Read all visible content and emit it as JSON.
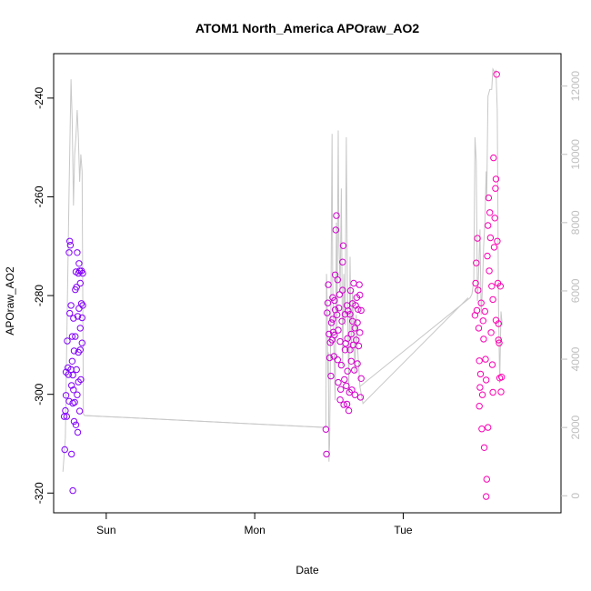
{
  "chart_data": {
    "type": "scatter",
    "title": "ATOM1 North_America APOraw_AO2",
    "xlabel": "Date",
    "ylabel": "APOraw_AO2",
    "x_ticks": [
      {
        "label": "Sun",
        "x": 24
      },
      {
        "label": "Mon",
        "x": 48
      },
      {
        "label": "Tue",
        "x": 72
      }
    ],
    "xlim": [
      15.5,
      97.5
    ],
    "ylim": [
      -324,
      -231
    ],
    "y_ticks": [
      -320,
      -300,
      -280,
      -260,
      -240
    ],
    "y2lim": [
      -500,
      12950
    ],
    "y2_ticks": [
      0,
      2000,
      4000,
      6000,
      8000,
      10000,
      12000
    ],
    "grid": false,
    "series": [
      {
        "color_start": "#7f00ff",
        "color_end": "#ff00b0",
        "points": [
          [
            17.2,
            -304.5
          ],
          [
            17.3,
            -311.2
          ],
          [
            17.4,
            -303.3
          ],
          [
            17.5,
            -300.2
          ],
          [
            17.5,
            -295.5
          ],
          [
            17.6,
            -304.5
          ],
          [
            17.7,
            -289.2
          ],
          [
            17.8,
            -294.6
          ],
          [
            17.9,
            -296.0
          ],
          [
            18.0,
            -301.4
          ],
          [
            18.0,
            -271.3
          ],
          [
            18.1,
            -269.0
          ],
          [
            18.2,
            -269.8
          ],
          [
            18.3,
            -282.0
          ],
          [
            18.3,
            -295.0
          ],
          [
            18.4,
            -298.2
          ],
          [
            18.4,
            -312.1
          ],
          [
            18.5,
            -288.3
          ],
          [
            18.5,
            -293.3
          ],
          [
            18.6,
            -301.8
          ],
          [
            18.6,
            -319.5
          ],
          [
            18.7,
            -299.1
          ],
          [
            18.7,
            -284.6
          ],
          [
            18.8,
            -305.5
          ],
          [
            18.8,
            -291.2
          ],
          [
            18.9,
            -301.6
          ],
          [
            19.0,
            -288.3
          ],
          [
            19.0,
            -278.8
          ],
          [
            19.1,
            -275.2
          ],
          [
            19.1,
            -306.2
          ],
          [
            19.2,
            -295.0
          ],
          [
            19.2,
            -278.3
          ],
          [
            19.3,
            -271.3
          ],
          [
            19.3,
            -300.1
          ],
          [
            19.4,
            -284.2
          ],
          [
            19.4,
            -307.7
          ],
          [
            19.5,
            -275.5
          ],
          [
            19.5,
            -291.5
          ],
          [
            19.6,
            -273.5
          ],
          [
            19.6,
            -282.6
          ],
          [
            19.7,
            -275.0
          ],
          [
            19.7,
            -303.4
          ],
          [
            19.8,
            -286.6
          ],
          [
            19.8,
            -277.5
          ],
          [
            19.9,
            -297.0
          ],
          [
            20.0,
            -281.6
          ],
          [
            20.0,
            -275.0
          ],
          [
            20.1,
            -289.6
          ],
          [
            20.1,
            -284.5
          ],
          [
            20.2,
            -275.5
          ],
          [
            20.2,
            -282.0
          ],
          [
            19.5,
            -297.5
          ],
          [
            19.8,
            -291.0
          ],
          [
            18.1,
            -283.6
          ],
          [
            18.6,
            -296.1
          ],
          [
            59.5,
            -307.1
          ],
          [
            59.6,
            -312.1
          ],
          [
            59.7,
            -283.5
          ],
          [
            59.8,
            -281.5
          ],
          [
            59.9,
            -277.8
          ],
          [
            60.0,
            -287.8
          ],
          [
            60.1,
            -292.6
          ],
          [
            60.2,
            -289.5
          ],
          [
            60.3,
            -296.3
          ],
          [
            60.4,
            -285.5
          ],
          [
            60.5,
            -289.0
          ],
          [
            60.6,
            -284.8
          ],
          [
            60.6,
            -280.4
          ],
          [
            60.7,
            -287.4
          ],
          [
            60.8,
            -292.3
          ],
          [
            60.9,
            -288.0
          ],
          [
            61.0,
            -282.9
          ],
          [
            61.0,
            -275.8
          ],
          [
            61.1,
            -266.7
          ],
          [
            61.2,
            -263.8
          ],
          [
            61.3,
            -283.9
          ],
          [
            61.4,
            -276.8
          ],
          [
            61.4,
            -293.0
          ],
          [
            61.5,
            -287.0
          ],
          [
            61.6,
            -282.5
          ],
          [
            61.7,
            -279.8
          ],
          [
            61.8,
            -289.3
          ],
          [
            61.8,
            -301.1
          ],
          [
            61.9,
            -299.0
          ],
          [
            62.0,
            -294.1
          ],
          [
            62.1,
            -285.2
          ],
          [
            62.2,
            -273.2
          ],
          [
            62.2,
            -278.9
          ],
          [
            62.3,
            -269.9
          ],
          [
            62.4,
            -302.1
          ],
          [
            62.5,
            -297.0
          ],
          [
            62.6,
            -291.0
          ],
          [
            62.6,
            -283.8
          ],
          [
            62.7,
            -289.7
          ],
          [
            62.8,
            -298.3
          ],
          [
            62.9,
            -282.0
          ],
          [
            63.0,
            -288.7
          ],
          [
            63.0,
            -295.3
          ],
          [
            63.1,
            -283.1
          ],
          [
            63.2,
            -303.3
          ],
          [
            63.3,
            -299.6
          ],
          [
            63.4,
            -291.0
          ],
          [
            63.4,
            -283.8
          ],
          [
            63.5,
            -279.0
          ],
          [
            63.6,
            -287.8
          ],
          [
            63.7,
            -299.1
          ],
          [
            63.8,
            -285.2
          ],
          [
            63.8,
            -281.6
          ],
          [
            63.9,
            -290.0
          ],
          [
            64.0,
            -277.5
          ],
          [
            64.1,
            -295.1
          ],
          [
            64.2,
            -286.6
          ],
          [
            64.2,
            -300.1
          ],
          [
            64.3,
            -282.0
          ],
          [
            64.4,
            -289.0
          ],
          [
            64.5,
            -280.4
          ],
          [
            64.6,
            -285.5
          ],
          [
            64.6,
            -293.8
          ],
          [
            64.7,
            -282.8
          ],
          [
            64.8,
            -290.2
          ],
          [
            64.9,
            -277.8
          ],
          [
            65.0,
            -287.5
          ],
          [
            65.0,
            -279.9
          ],
          [
            65.1,
            -300.6
          ],
          [
            65.2,
            -296.8
          ],
          [
            65.2,
            -283.0
          ],
          [
            61.5,
            -297.6
          ],
          [
            62.9,
            -302.0
          ],
          [
            63.6,
            -293.3
          ],
          [
            60.9,
            -281.0
          ],
          [
            84.0,
            -268.4
          ],
          [
            84.1,
            -278.9
          ],
          [
            84.2,
            -286.6
          ],
          [
            84.3,
            -293.2
          ],
          [
            84.4,
            -298.6
          ],
          [
            84.5,
            -295.9
          ],
          [
            84.6,
            -281.5
          ],
          [
            84.7,
            -307.0
          ],
          [
            84.8,
            -300.1
          ],
          [
            84.9,
            -285.1
          ],
          [
            85.0,
            -288.8
          ],
          [
            85.1,
            -310.8
          ],
          [
            85.2,
            -283.2
          ],
          [
            85.3,
            -292.9
          ],
          [
            85.4,
            -297.1
          ],
          [
            85.4,
            -320.7
          ],
          [
            85.5,
            -317.2
          ],
          [
            85.6,
            -272.0
          ],
          [
            85.7,
            -265.8
          ],
          [
            85.8,
            -260.2
          ],
          [
            85.9,
            -275.0
          ],
          [
            86.0,
            -263.2
          ],
          [
            86.1,
            -268.3
          ],
          [
            86.2,
            -287.5
          ],
          [
            86.3,
            -278.1
          ],
          [
            86.4,
            -294.0
          ],
          [
            86.5,
            -299.6
          ],
          [
            86.6,
            -252.1
          ],
          [
            86.7,
            -270.2
          ],
          [
            86.8,
            -264.3
          ],
          [
            86.9,
            -258.3
          ],
          [
            87.0,
            -256.4
          ],
          [
            87.1,
            -235.2
          ],
          [
            87.2,
            -269.0
          ],
          [
            87.3,
            -277.5
          ],
          [
            87.4,
            -285.7
          ],
          [
            87.5,
            -289.6
          ],
          [
            87.6,
            -296.7
          ],
          [
            87.7,
            -278.1
          ],
          [
            87.8,
            -299.5
          ],
          [
            87.9,
            -296.5
          ],
          [
            83.6,
            -284.0
          ],
          [
            83.7,
            -277.5
          ],
          [
            83.8,
            -273.4
          ],
          [
            83.9,
            -283.0
          ],
          [
            84.3,
            -302.4
          ],
          [
            85.7,
            -306.7
          ],
          [
            86.5,
            -280.8
          ],
          [
            87.0,
            -285.0
          ],
          [
            87.4,
            -289.0
          ]
        ]
      }
    ],
    "right_axis_line": [
      [
        17.0,
        700
      ],
      [
        17.4,
        1700
      ],
      [
        17.7,
        5500
      ],
      [
        18.0,
        9000
      ],
      [
        18.3,
        12200
      ],
      [
        18.5,
        11000
      ],
      [
        18.7,
        8500
      ],
      [
        18.9,
        10000
      ],
      [
        19.1,
        10500
      ],
      [
        19.3,
        11300
      ],
      [
        19.5,
        10500
      ],
      [
        19.7,
        9200
      ],
      [
        19.9,
        10000
      ],
      [
        20.1,
        9500
      ],
      [
        20.3,
        2400
      ],
      [
        20.5,
        2350
      ],
      [
        59.5,
        2000
      ],
      [
        59.6,
        6500
      ],
      [
        59.7,
        5700
      ],
      [
        59.8,
        3500
      ],
      [
        59.9,
        4200
      ],
      [
        60.0,
        1000
      ],
      [
        60.1,
        1500
      ],
      [
        60.3,
        5500
      ],
      [
        60.5,
        10600
      ],
      [
        60.6,
        6200
      ],
      [
        60.8,
        4300
      ],
      [
        61.0,
        2800
      ],
      [
        61.2,
        8000
      ],
      [
        61.3,
        4900
      ],
      [
        61.4,
        8000
      ],
      [
        61.5,
        10700
      ],
      [
        61.6,
        7500
      ],
      [
        61.8,
        6000
      ],
      [
        62.0,
        9000
      ],
      [
        62.2,
        3800
      ],
      [
        62.4,
        6500
      ],
      [
        62.6,
        5000
      ],
      [
        62.8,
        10500
      ],
      [
        63.0,
        5800
      ],
      [
        63.2,
        3000
      ],
      [
        63.4,
        7000
      ],
      [
        63.6,
        4200
      ],
      [
        63.8,
        6000
      ],
      [
        64.0,
        4800
      ],
      [
        64.2,
        3600
      ],
      [
        64.4,
        5300
      ],
      [
        64.6,
        4400
      ],
      [
        64.8,
        3800
      ],
      [
        65.0,
        3200
      ],
      [
        82.8,
        5800
      ],
      [
        83.1,
        5900
      ],
      [
        83.4,
        6300
      ],
      [
        83.6,
        10500
      ],
      [
        83.8,
        9800
      ],
      [
        84.0,
        5700
      ],
      [
        84.2,
        6600
      ],
      [
        84.4,
        7800
      ],
      [
        84.6,
        5300
      ],
      [
        84.8,
        6100
      ],
      [
        85.0,
        7300
      ],
      [
        85.2,
        8000
      ],
      [
        85.4,
        9500
      ],
      [
        85.5,
        8700
      ],
      [
        85.7,
        11700
      ],
      [
        86.0,
        11900
      ],
      [
        86.3,
        11900
      ],
      [
        86.5,
        12500
      ],
      [
        86.8,
        12400
      ],
      [
        87.0,
        12450
      ],
      [
        87.2,
        11300
      ],
      [
        87.4,
        5500
      ],
      [
        87.6,
        3300
      ],
      [
        87.8,
        5400
      ],
      [
        88.0,
        5000
      ]
    ],
    "right_axis_connectors": [
      [
        [
          20.5,
          2350
        ],
        [
          59.3,
          2000
        ]
      ],
      [
        [
          65.0,
          3200
        ],
        [
          65.5,
          2700
        ],
        [
          82.5,
          5800
        ]
      ]
    ]
  }
}
